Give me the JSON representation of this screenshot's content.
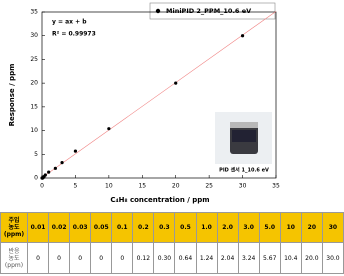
{
  "chart_data": {
    "type": "scatter",
    "legend": "MiniPID 2_PPM_10.6 eV",
    "annotations": [
      "y = ax + b",
      "R² = 0.99973"
    ],
    "inset_caption": "PID 센서 1_10.6 eV",
    "xlabel": "C₄H₈ concentration / ppm",
    "ylabel": "Response / ppm",
    "x": [
      0.01,
      0.02,
      0.03,
      0.05,
      0.1,
      0.2,
      0.3,
      0.5,
      1.0,
      2.0,
      3.0,
      5.0,
      10,
      20,
      30
    ],
    "series": [
      {
        "name": "MiniPID 2_PPM_10.6 eV",
        "color": "#000000",
        "values": [
          0,
          0,
          0,
          0,
          0,
          0.12,
          0.3,
          0.64,
          1.24,
          2.04,
          3.24,
          5.67,
          10.4,
          20.0,
          30.0
        ]
      }
    ],
    "fit_line": true,
    "fit_color": "#f08080",
    "xlim": [
      0,
      35
    ],
    "xticks": [
      0,
      5,
      10,
      15,
      20,
      25,
      30,
      35
    ],
    "ylim": [
      0,
      35
    ],
    "yticks": [
      0,
      5,
      10,
      15,
      20,
      25,
      30,
      35
    ]
  },
  "table": {
    "rows": [
      [
        "주입\n농도\n(ppm)",
        "0.01",
        "0.02",
        "0.03",
        "0.05",
        "0.1",
        "0.2",
        "0.3",
        "0.5",
        "1.0",
        "2.0",
        "3.0",
        "5.0",
        "10",
        "20",
        "30"
      ],
      [
        "반응\n농도\n(ppm)",
        "0",
        "0",
        "0",
        "0",
        "0",
        "0.12",
        "0.30",
        "0.64",
        "1.24",
        "2.04",
        "3.24",
        "5.67",
        "10.4",
        "20.0",
        "30.0"
      ]
    ]
  }
}
